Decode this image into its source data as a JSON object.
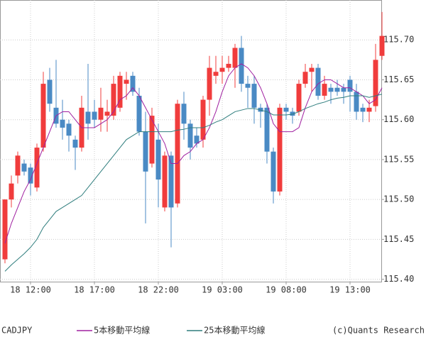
{
  "chart_data": {
    "type": "candlestick",
    "symbol": "CADJPY",
    "copyright": "(c)Quants Research",
    "up_color": "#f03c3c",
    "down_color": "#4a8ac4",
    "grid": true,
    "ylim": [
      115.397,
      115.75
    ],
    "yticks": [
      {
        "value": 115.4,
        "label": "115.40"
      },
      {
        "value": 115.45,
        "label": "115.45"
      },
      {
        "value": 115.5,
        "label": "115.50"
      },
      {
        "value": 115.55,
        "label": "115.55"
      },
      {
        "value": 115.6,
        "label": "115.60"
      },
      {
        "value": 115.65,
        "label": "115.65"
      },
      {
        "value": 115.7,
        "label": "115.70"
      }
    ],
    "categories": [
      null,
      null,
      null,
      null,
      "18 12:00",
      null,
      null,
      null,
      null,
      null,
      null,
      null,
      null,
      null,
      "18 17:00",
      null,
      null,
      null,
      null,
      null,
      null,
      null,
      null,
      null,
      "18 22:00",
      null,
      null,
      null,
      null,
      null,
      null,
      null,
      null,
      null,
      "19 03:00",
      null,
      null,
      null,
      null,
      null,
      null,
      null,
      null,
      null,
      "19 08:00",
      null,
      null,
      null,
      null,
      null,
      null,
      null,
      null,
      null,
      "19 13:00",
      null,
      null,
      null,
      null,
      null
    ],
    "open": [
      115.425,
      115.5,
      115.53,
      115.545,
      115.54,
      115.515,
      115.565,
      115.65,
      115.615,
      115.6,
      115.595,
      115.575,
      115.565,
      115.61,
      115.61,
      115.6,
      115.605,
      115.605,
      115.615,
      115.645,
      115.655,
      115.63,
      115.585,
      115.545,
      115.575,
      115.49,
      115.555,
      115.495,
      115.62,
      115.595,
      115.58,
      115.575,
      115.625,
      115.655,
      115.66,
      115.665,
      115.665,
      115.69,
      115.645,
      115.645,
      115.615,
      115.615,
      115.56,
      115.51,
      115.615,
      115.61,
      115.61,
      115.645,
      115.66,
      115.665,
      115.63,
      115.64,
      115.64,
      115.64,
      115.65,
      115.635,
      115.615,
      115.61,
      115.617,
      115.68
    ],
    "high": [
      115.5,
      115.53,
      115.56,
      115.55,
      115.545,
      115.57,
      115.66,
      115.665,
      115.675,
      115.625,
      115.6,
      115.58,
      115.63,
      115.67,
      115.625,
      115.64,
      115.625,
      115.655,
      115.66,
      115.66,
      115.66,
      115.64,
      115.61,
      115.615,
      115.595,
      115.56,
      115.56,
      115.625,
      115.635,
      115.6,
      115.59,
      115.63,
      115.68,
      115.68,
      115.68,
      115.68,
      115.695,
      115.705,
      115.655,
      115.655,
      115.62,
      115.62,
      115.565,
      115.62,
      115.62,
      115.615,
      115.65,
      115.67,
      115.67,
      115.67,
      115.655,
      115.645,
      115.65,
      115.645,
      115.655,
      115.645,
      115.62,
      115.625,
      115.695,
      115.735
    ],
    "low": [
      115.42,
      115.49,
      115.52,
      115.53,
      115.505,
      115.51,
      115.56,
      115.61,
      115.59,
      115.575,
      115.56,
      115.537,
      115.56,
      115.575,
      115.59,
      115.585,
      115.585,
      115.6,
      115.61,
      115.625,
      115.63,
      115.58,
      115.47,
      115.54,
      115.49,
      115.485,
      115.44,
      115.49,
      115.575,
      115.55,
      115.565,
      115.565,
      115.605,
      115.645,
      115.645,
      115.66,
      115.64,
      115.635,
      115.615,
      115.595,
      115.59,
      115.545,
      115.495,
      115.505,
      115.6,
      115.595,
      115.605,
      115.64,
      115.635,
      115.625,
      115.625,
      115.62,
      115.63,
      115.62,
      115.61,
      115.6,
      115.597,
      115.597,
      115.61,
      115.675
    ],
    "close": [
      115.5,
      115.52,
      115.555,
      115.535,
      115.52,
      115.565,
      115.645,
      115.62,
      115.595,
      115.59,
      115.58,
      115.565,
      115.615,
      115.595,
      115.6,
      115.615,
      115.61,
      115.645,
      115.655,
      115.65,
      115.635,
      115.585,
      115.535,
      115.605,
      115.525,
      115.555,
      115.49,
      115.62,
      115.595,
      115.565,
      115.57,
      115.625,
      115.665,
      115.66,
      115.665,
      115.67,
      115.69,
      115.645,
      115.64,
      115.615,
      115.61,
      115.56,
      115.51,
      115.615,
      115.61,
      115.605,
      115.645,
      115.66,
      115.665,
      115.63,
      115.645,
      115.635,
      115.635,
      115.635,
      115.635,
      115.61,
      115.61,
      115.615,
      115.675,
      115.705
    ],
    "series": [
      {
        "name": "5本移動平均線",
        "color": "#a020a0",
        "values": [
          115.445,
          115.47,
          115.49,
          115.51,
          115.525,
          115.545,
          115.565,
          115.585,
          115.605,
          115.61,
          115.61,
          115.6,
          115.59,
          115.59,
          115.59,
          115.595,
          115.6,
          115.61,
          115.625,
          115.63,
          115.64,
          115.63,
          115.615,
          115.6,
          115.585,
          115.57,
          115.545,
          115.545,
          115.555,
          115.56,
          115.57,
          115.575,
          115.59,
          115.61,
          115.635,
          115.655,
          115.665,
          115.67,
          115.665,
          115.655,
          115.64,
          115.62,
          115.595,
          115.585,
          115.585,
          115.585,
          115.59,
          115.615,
          115.635,
          115.645,
          115.65,
          115.65,
          115.645,
          115.64,
          115.64,
          115.635,
          115.63,
          115.62,
          115.625,
          115.64
        ]
      },
      {
        "name": "25本移動平均線",
        "color": "#2e7d7d",
        "values": [
          115.41,
          115.418,
          115.425,
          115.432,
          115.44,
          115.45,
          115.465,
          115.475,
          115.485,
          115.49,
          115.495,
          115.5,
          115.505,
          115.515,
          115.525,
          115.535,
          115.545,
          115.555,
          115.565,
          115.575,
          115.58,
          115.585,
          115.585,
          115.585,
          115.585,
          115.585,
          115.585,
          115.587,
          115.588,
          115.59,
          115.59,
          115.59,
          115.593,
          115.597,
          115.6,
          115.605,
          115.61,
          115.612,
          115.614,
          115.614,
          115.612,
          115.61,
          115.606,
          115.606,
          115.606,
          115.607,
          115.61,
          115.614,
          115.617,
          115.62,
          115.622,
          115.625,
          115.627,
          115.628,
          115.63,
          115.63,
          115.63,
          115.628,
          115.63,
          115.632
        ]
      }
    ]
  }
}
